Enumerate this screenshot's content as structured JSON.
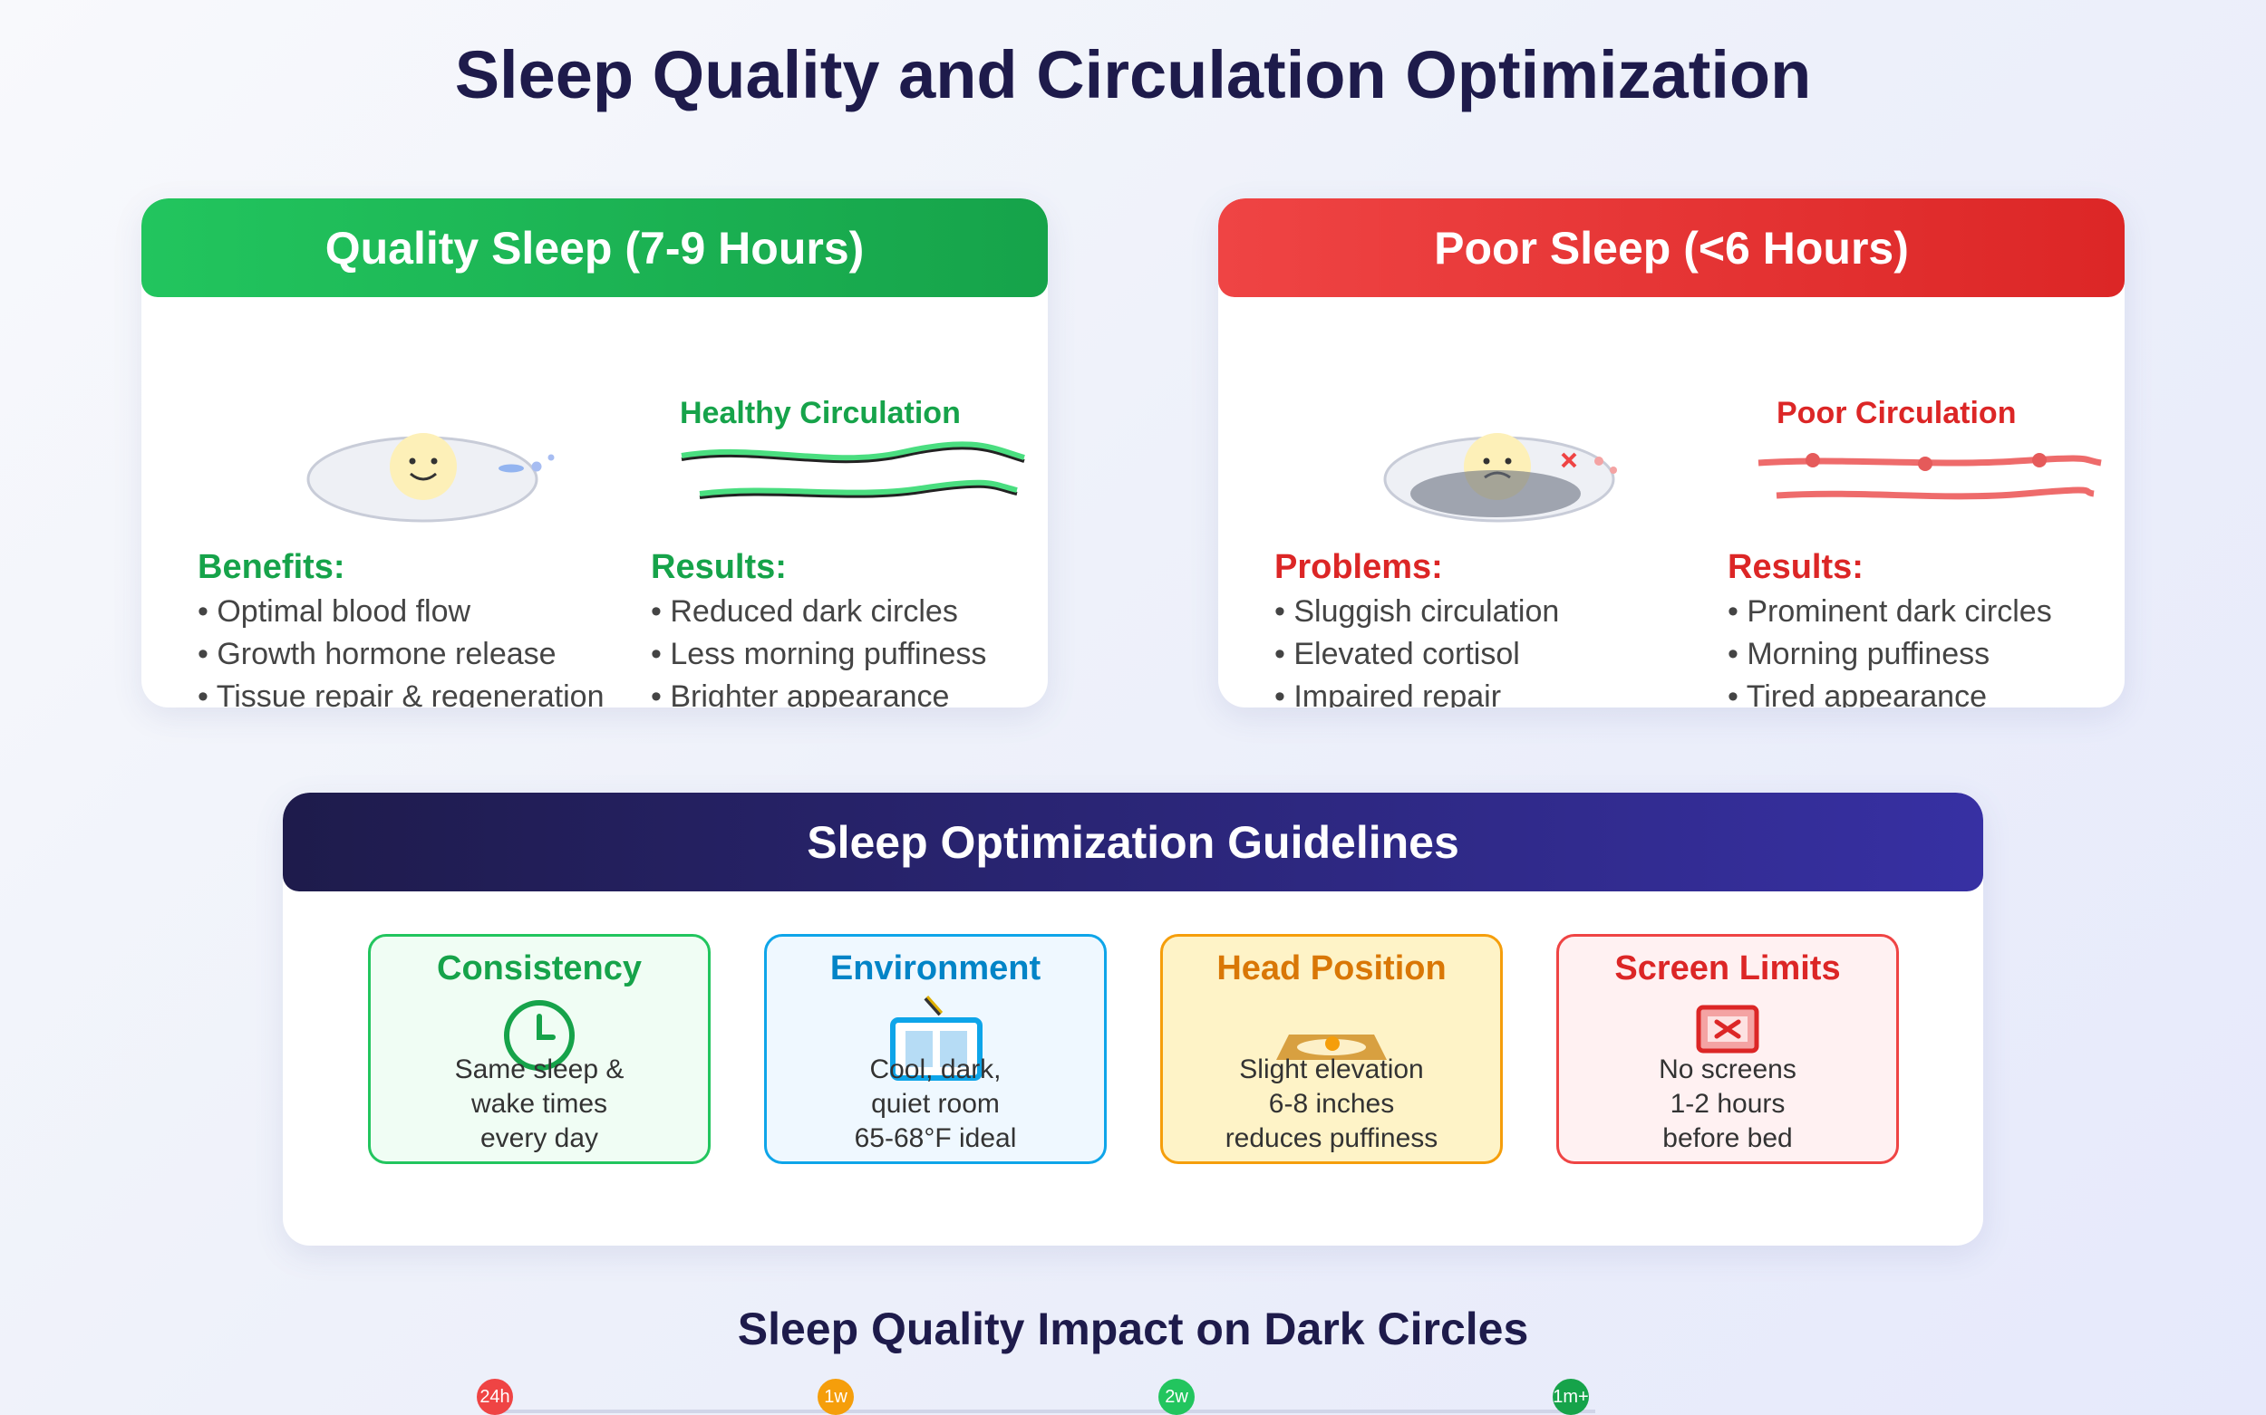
{
  "page": {
    "title": "Sleep Quality and Circulation Optimization"
  },
  "colors": {
    "green": "#16a34a",
    "red": "#dc2626",
    "navy": "#1e1b4b",
    "indigo": "#3730a3",
    "blue": "#0284c7",
    "amber": "#d97706"
  },
  "quality_card": {
    "title": "Quality Sleep (7-9 Hours)",
    "circulation_label": "Healthy Circulation",
    "benefits_heading": "Benefits:",
    "benefits": [
      "Optimal blood flow",
      "Growth hormone release",
      "Tissue repair & regeneration"
    ],
    "results_heading": "Results:",
    "results": [
      "Reduced dark circles",
      "Less morning puffiness",
      "Brighter appearance"
    ]
  },
  "poor_card": {
    "title": "Poor Sleep (<6 Hours)",
    "circulation_label": "Poor Circulation",
    "problems_heading": "Problems:",
    "problems": [
      "Sluggish circulation",
      "Elevated cortisol",
      "Impaired repair"
    ],
    "results_heading": "Results:",
    "results": [
      "Prominent dark circles",
      "Morning puffiness",
      "Tired appearance"
    ]
  },
  "guidelines": {
    "title": "Sleep Optimization Guidelines",
    "tiles": [
      {
        "title": "Consistency",
        "icon": "clock-icon",
        "lines": [
          "Same sleep &",
          "wake times",
          "every day"
        ]
      },
      {
        "title": "Environment",
        "icon": "window-icon",
        "lines": [
          "Cool, dark,",
          "quiet room",
          "65-68°F ideal"
        ]
      },
      {
        "title": "Head Position",
        "icon": "pillow-icon",
        "lines": [
          "Slight elevation",
          "6-8 inches",
          "reduces puffiness"
        ]
      },
      {
        "title": "Screen Limits",
        "icon": "no-screen-icon",
        "lines": [
          "No screens",
          "1-2 hours",
          "before bed"
        ]
      }
    ]
  },
  "impact": {
    "title": "Sleep Quality Impact on Dark Circles",
    "markers": [
      {
        "label": "24h",
        "color": "#ef4444"
      },
      {
        "label": "1w",
        "color": "#f59e0b"
      },
      {
        "label": "2w",
        "color": "#22c55e"
      },
      {
        "label": "1m+",
        "color": "#16a34a"
      }
    ]
  }
}
